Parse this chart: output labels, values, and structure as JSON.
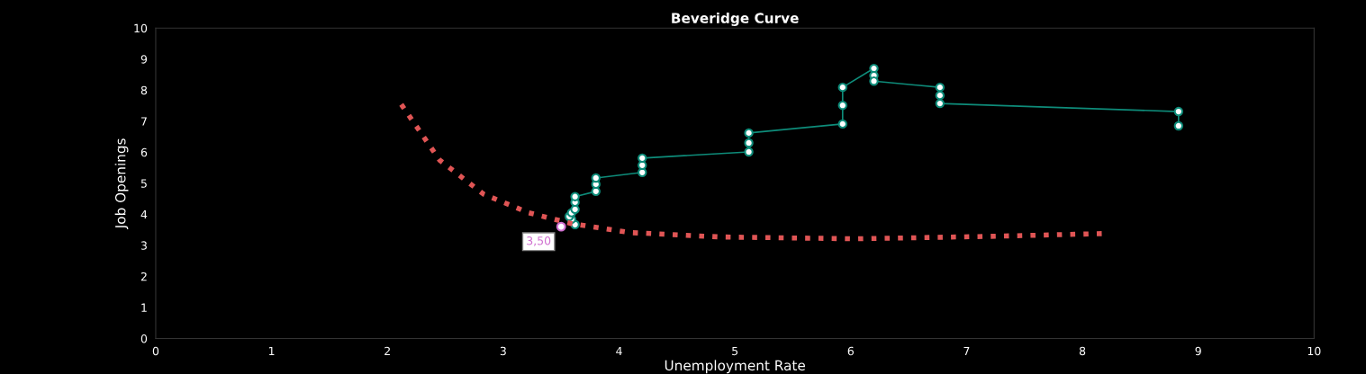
{
  "chart_data": {
    "type": "line",
    "title": "Beveridge Curve",
    "xlabel": "Unemployment Rate",
    "ylabel": "Job Openings",
    "xlim": [
      0,
      10
    ],
    "xticks": [
      0,
      1,
      2,
      3,
      4,
      5,
      6,
      7,
      8,
      9,
      10
    ],
    "ylim": [
      0,
      10
    ],
    "yticks": [
      0,
      1,
      2,
      3,
      4,
      5,
      6,
      7,
      8,
      9,
      10
    ],
    "grid": false,
    "legend": false,
    "marker": "circle",
    "series": [
      {
        "color": "#0e8c7a",
        "line_style": "solid",
        "x": [
          3.62,
          3.59,
          3.57,
          3.59,
          3.62,
          3.62,
          3.62,
          3.8,
          3.8,
          3.8,
          4.2,
          4.2,
          4.2,
          5.12,
          5.12,
          5.12,
          5.93,
          5.93,
          5.93,
          6.2,
          6.2,
          6.2,
          6.77,
          6.77,
          6.77,
          8.83,
          8.83
        ],
        "values": [
          3.67,
          3.84,
          3.93,
          4.05,
          4.16,
          4.39,
          4.57,
          4.74,
          4.97,
          5.17,
          5.35,
          5.58,
          5.81,
          6.01,
          6.3,
          6.62,
          6.91,
          7.51,
          8.09,
          8.7,
          8.47,
          8.29,
          8.09,
          7.83,
          7.57,
          7.31,
          6.85
        ]
      },
      {
        "type": "line",
        "color": "#e05555",
        "marker": "none",
        "line_style": "dotted",
        "x": [
          2.12,
          2.45,
          2.83,
          3.22,
          3.59,
          4.1,
          4.88,
          6.04,
          7.21,
          8.2
        ],
        "values": [
          7.54,
          5.75,
          4.65,
          4.05,
          3.7,
          3.41,
          3.27,
          3.21,
          3.29,
          3.38
        ]
      },
      {
        "type": "scatter",
        "color": "#d070d0",
        "marker": "circle",
        "x": [
          3.5
        ],
        "values": [
          3.6
        ]
      }
    ],
    "annotations": [
      {
        "text": "3,50",
        "x": 3.5,
        "y": 3.6
      }
    ]
  }
}
